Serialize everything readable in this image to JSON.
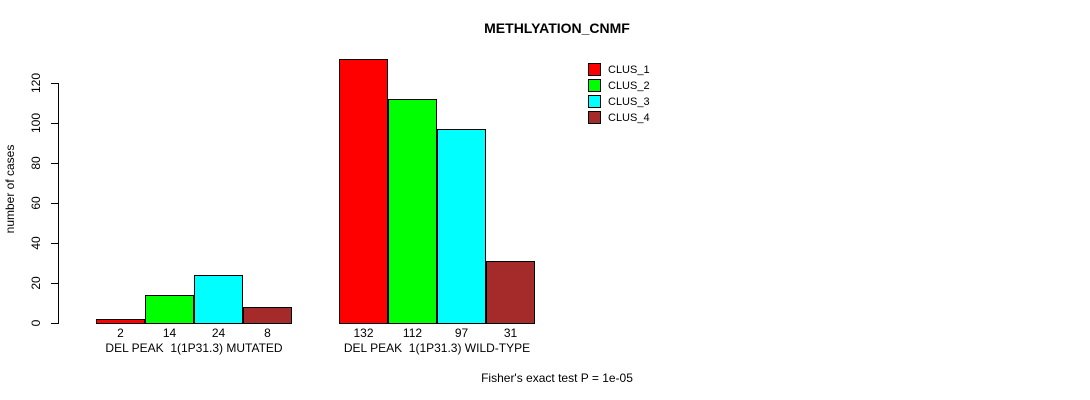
{
  "chart": {
    "title": "METHLYATION_CNMF",
    "ylabel": "number of cases",
    "caption": "Fisher's exact test P = 1e-05"
  },
  "chart_data": {
    "type": "bar",
    "title": "METHLYATION_CNMF",
    "xlabel": "",
    "ylabel": "number of cases",
    "ylim": [
      0,
      132
    ],
    "yticks": [
      0,
      20,
      40,
      60,
      80,
      100,
      120
    ],
    "grid": false,
    "legend_position": "top-right",
    "categories": [
      "DEL PEAK  1(1P31.3) MUTATED",
      "DEL PEAK  1(1P31.3) WILD-TYPE"
    ],
    "series": [
      {
        "name": "CLUS_1",
        "color": "#ff0000",
        "values": [
          2,
          132
        ]
      },
      {
        "name": "CLUS_2",
        "color": "#00ff00",
        "values": [
          14,
          112
        ]
      },
      {
        "name": "CLUS_3",
        "color": "#00ffff",
        "values": [
          24,
          97
        ]
      },
      {
        "name": "CLUS_4",
        "color": "#a52a2a",
        "values": [
          8,
          31
        ]
      }
    ],
    "bar_value_labels": [
      [
        2,
        14,
        24,
        8
      ],
      [
        132,
        112,
        97,
        31
      ]
    ],
    "annotation": "Fisher's exact test P = 1e-05"
  }
}
